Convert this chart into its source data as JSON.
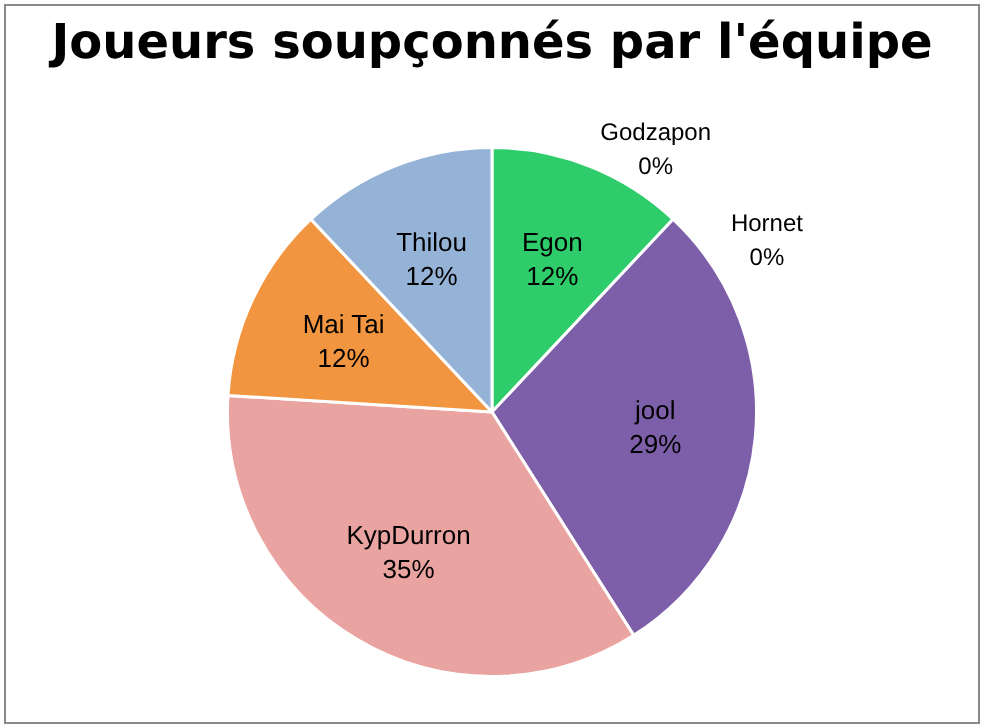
{
  "chart_data": {
    "type": "pie",
    "title": "Joueurs soupçonnés par l'équipe",
    "categories": [
      "Egon",
      "Godzapon",
      "Hornet",
      "jool",
      "KypDurron",
      "Mai Tai",
      "Thilou"
    ],
    "values": [
      12,
      0,
      0,
      29,
      35,
      12,
      12
    ],
    "value_labels": [
      "12%",
      "0%",
      "0%",
      "29%",
      "35%",
      "12%",
      "12%"
    ],
    "colors": [
      "#2ecc6a",
      "#4f81bd",
      "#c0504d",
      "#7d5ea8",
      "#e9a3a0",
      "#f29540",
      "#95b3d7"
    ],
    "legend": false
  }
}
